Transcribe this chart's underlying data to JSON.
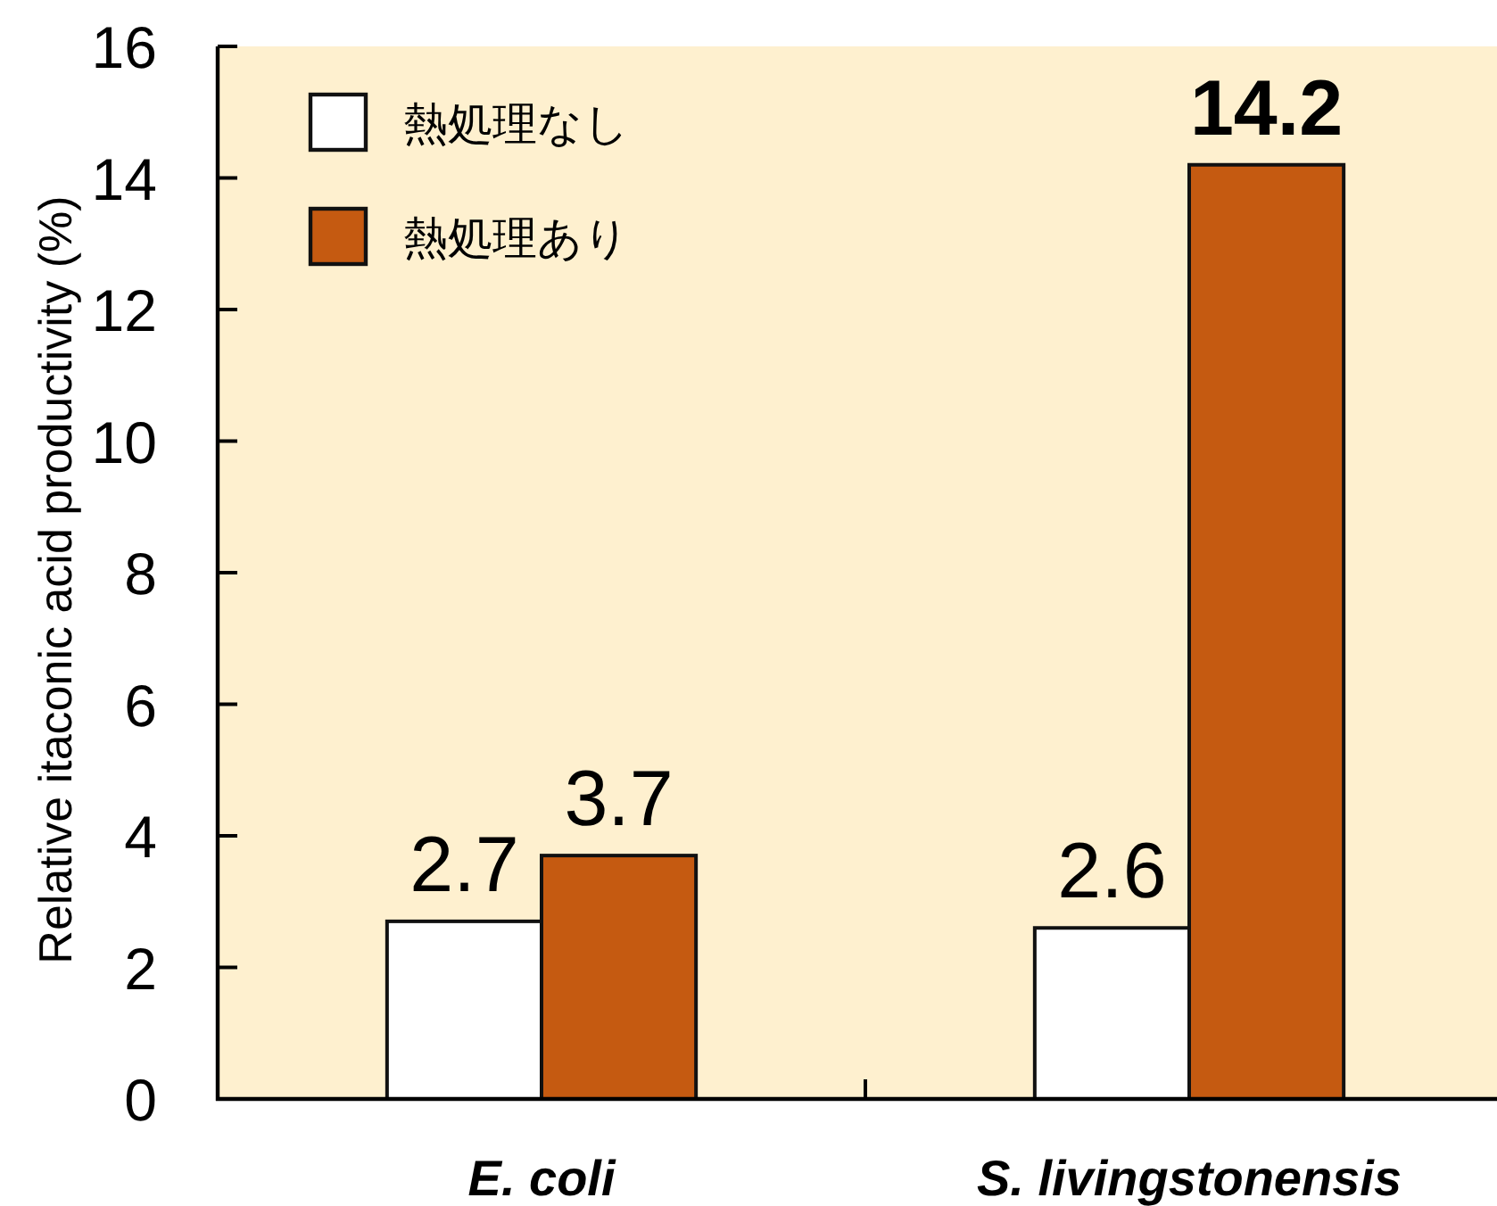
{
  "chart_data": {
    "type": "bar",
    "ylabel": "Relative itaconic acid productivity (%)",
    "categories": [
      "E. coli",
      "S. livingstonensis"
    ],
    "series": [
      {
        "name": "熱処理なし",
        "color": "#ffffff",
        "values": [
          2.7,
          2.6
        ]
      },
      {
        "name": "熱処理あり",
        "color": "#c55a11",
        "values": [
          3.7,
          14.2
        ]
      }
    ],
    "ylim": [
      0,
      16
    ],
    "yticks": [
      0,
      2,
      4,
      6,
      8,
      10,
      12,
      14,
      16
    ],
    "data_labels": true,
    "legend": "top left"
  }
}
